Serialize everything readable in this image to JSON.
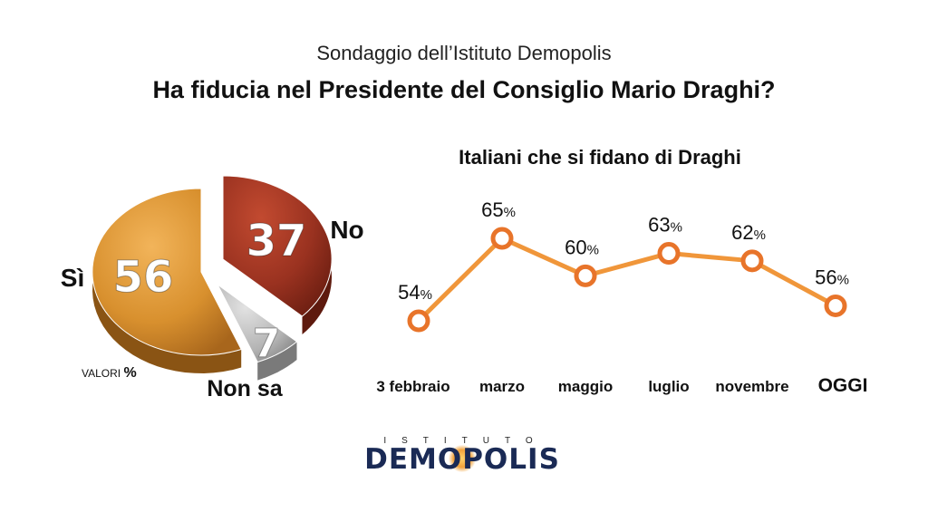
{
  "header": {
    "subtitle": "Sondaggio dell’Istituto Demopolis",
    "title": "Ha fiducia nel Presidente del Consiglio Mario Draghi?"
  },
  "logo": {
    "top_text": "ISTITUTO",
    "main_text": "DEMOPOLIS"
  },
  "chart_data": [
    {
      "type": "pie",
      "title": "",
      "note": "VALORI %",
      "slices": [
        {
          "label": "Sì",
          "value": 56,
          "color": "#d8902e"
        },
        {
          "label": "No",
          "value": 37,
          "color": "#9a3220"
        },
        {
          "label": "Non sa",
          "value": 7,
          "color": "#a9a9a9"
        }
      ]
    },
    {
      "type": "line",
      "title": "Italiani che si fidano di Draghi",
      "categories": [
        "3 febbraio",
        "marzo",
        "maggio",
        "luglio",
        "novembre",
        "OGGI"
      ],
      "values": [
        54,
        65,
        60,
        63,
        62,
        56
      ],
      "unit": "%",
      "color": "#f0963a"
    }
  ]
}
